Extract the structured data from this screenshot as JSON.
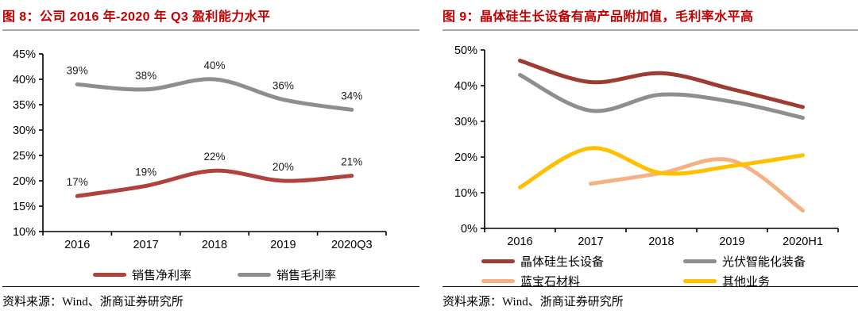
{
  "panels": [
    {
      "source": "资料来源：Wind、浙商证券研究所"
    },
    {
      "source": "资料来源：Wind、浙商证券研究所"
    }
  ],
  "colors": {
    "title_red": "#C00000",
    "net_margin_red": "#B0413C",
    "crystal_dark_red": "#9E3B33",
    "gray_line": "#8E8E8E",
    "sapphire_peach": "#F5B183",
    "other_yellow": "#FFC000"
  },
  "chart_data": [
    {
      "type": "line",
      "title": "图 8：公司 2016 年-2020 年 Q3 盈利能力水平",
      "categories": [
        "2016",
        "2017",
        "2018",
        "2019",
        "2020Q3"
      ],
      "series": [
        {
          "name": "销售净利率",
          "color": "#B0413C",
          "values": [
            17,
            19,
            22,
            20,
            21
          ],
          "labels": [
            "17%",
            "19%",
            "22%",
            "20%",
            "21%"
          ]
        },
        {
          "name": "销售毛利率",
          "color": "#8E8E8E",
          "values": [
            39,
            38,
            40,
            36,
            34
          ],
          "labels": [
            "39%",
            "38%",
            "40%",
            "36%",
            "34%"
          ]
        }
      ],
      "xlabel": "",
      "ylabel": "",
      "ylim": [
        10,
        45
      ],
      "ytick_step": 5,
      "yticks": [
        "45%",
        "40%",
        "35%",
        "30%",
        "25%",
        "20%",
        "15%",
        "10%"
      ],
      "grid": false,
      "smooth": true,
      "data_labels": true,
      "legend_position": "bottom"
    },
    {
      "type": "line",
      "title": "图 9：晶体硅生长设备有高产品附加值，毛利率水平高",
      "categories": [
        "2016",
        "2017",
        "2018",
        "2019",
        "2020H1"
      ],
      "series": [
        {
          "name": "晶体硅生长设备",
          "color": "#9E3B33",
          "values": [
            47,
            41,
            43.5,
            39,
            34
          ]
        },
        {
          "name": "光伏智能化装备",
          "color": "#8E8E8E",
          "values": [
            43,
            33,
            37.5,
            35.5,
            31
          ]
        },
        {
          "name": "蓝宝石材料",
          "color": "#F5B183",
          "values": [
            null,
            12.5,
            15.5,
            19,
            5
          ]
        },
        {
          "name": "其他业务",
          "color": "#FFC000",
          "values": [
            11.5,
            22.5,
            15.5,
            17.5,
            20.5
          ]
        }
      ],
      "xlabel": "",
      "ylabel": "",
      "ylim": [
        0,
        50
      ],
      "ytick_step": 10,
      "yticks": [
        "50%",
        "40%",
        "30%",
        "20%",
        "10%",
        "0%"
      ],
      "grid": false,
      "smooth": true,
      "data_labels": false,
      "legend_position": "bottom",
      "legend_columns": 2
    }
  ]
}
